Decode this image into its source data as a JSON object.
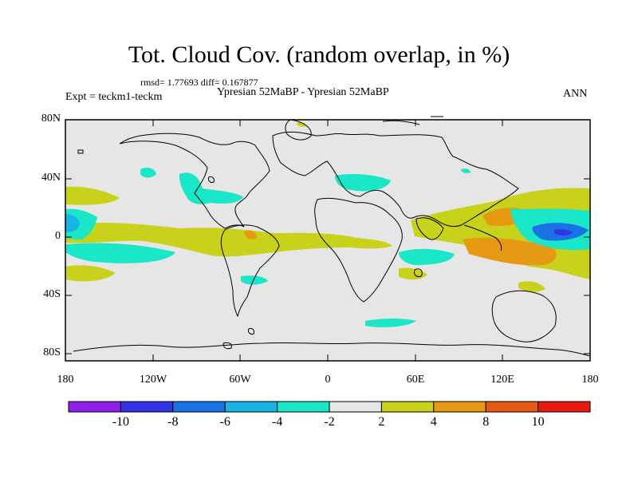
{
  "map": {
    "title": "Tot. Cloud Cov. (random overlap, in %)",
    "stats": "rmsd= 1.77693 diff= 0.167877",
    "experiment": "Expt = teckm1-teckm",
    "subtitle": "Ypresian  52MaBP - Ypresian  52MaBP",
    "season": "ANN",
    "lat_labels": [
      "80N",
      "40N",
      "0",
      "40S",
      "80S"
    ],
    "lon_labels": [
      "180",
      "120W",
      "60W",
      "0",
      "60E",
      "120E",
      "180"
    ],
    "background_color": "#e6e6e6"
  },
  "colorbar": {
    "labels": [
      "-10",
      "-8",
      "-6",
      "-4",
      "-2",
      "2",
      "4",
      "8",
      "10"
    ],
    "colors": [
      "#8f1fe6",
      "#3333e6",
      "#1a73e6",
      "#1ab3e6",
      "#1ae6c8",
      "#e6e6e6",
      "#c8d21a",
      "#e69a14",
      "#e65a14",
      "#e61a14"
    ]
  }
}
